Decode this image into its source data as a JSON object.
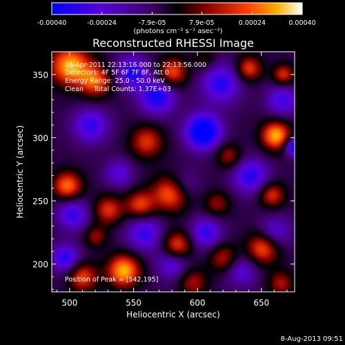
{
  "chart_data": {
    "type": "heatmap",
    "title": "Reconstructed RHESSI Image",
    "xlabel": "Heliocentric X (arcsec)",
    "ylabel": "Heliocentric Y (arcsec)",
    "xlim": [
      486,
      676
    ],
    "ylim": [
      178,
      368
    ],
    "x_ticks": [
      500,
      550,
      600,
      650
    ],
    "y_ticks": [
      200,
      250,
      300,
      350
    ],
    "colorbar": {
      "range": [
        -0.0004,
        0.0004
      ],
      "tick_values": [
        -0.0004,
        -0.00024,
        -7.9e-05,
        7.9e-05,
        0.00024,
        0.0004
      ],
      "tick_labels": [
        "-0.00040",
        "-0.00024",
        "-7.9e-05",
        "7.9e-05",
        "0.00024",
        "0.00040"
      ],
      "units_label": "(photons cm⁻² s⁻¹ asec⁻²)"
    },
    "annotations": {
      "time_range": "16-Apr-2011 22:13:16.000 to 22:13:56.000",
      "detectors": "Detectors: 4F 5F 6F 7F 8F, Att 0",
      "energy_range": "Energy Range: 25.0 - 50.0 keV",
      "method_counts": "Clean     Total Counts: 1.37E+03",
      "peak_position": "Position of Peak = [542,195]"
    },
    "footer_date": "8-Aug-2013 09:51",
    "blobs": [
      {
        "x": 604,
        "y": 305,
        "v": -0.0004,
        "s": 10
      },
      {
        "x": 568,
        "y": 333,
        "v": -0.0003,
        "s": 10
      },
      {
        "x": 548,
        "y": 352,
        "v": -0.00028,
        "s": 9
      },
      {
        "x": 618,
        "y": 343,
        "v": -0.00026,
        "s": 11
      },
      {
        "x": 641,
        "y": 270,
        "v": -0.00026,
        "s": 10
      },
      {
        "x": 516,
        "y": 310,
        "v": -0.00024,
        "s": 10
      },
      {
        "x": 587,
        "y": 262,
        "v": -0.00022,
        "s": 9
      },
      {
        "x": 558,
        "y": 225,
        "v": -0.00024,
        "s": 10
      },
      {
        "x": 606,
        "y": 225,
        "v": -0.00024,
        "s": 9
      },
      {
        "x": 502,
        "y": 240,
        "v": -0.00024,
        "s": 9
      },
      {
        "x": 496,
        "y": 205,
        "v": -0.00026,
        "s": 8
      },
      {
        "x": 666,
        "y": 330,
        "v": -0.00022,
        "s": 9
      },
      {
        "x": 660,
        "y": 225,
        "v": -0.0002,
        "s": 9
      },
      {
        "x": 580,
        "y": 200,
        "v": -0.0002,
        "s": 9
      },
      {
        "x": 538,
        "y": 272,
        "v": -0.00018,
        "s": 8
      },
      {
        "x": 634,
        "y": 195,
        "v": -0.00018,
        "s": 9
      },
      {
        "x": 675,
        "y": 293,
        "v": -0.00034,
        "s": 5
      },
      {
        "x": 500,
        "y": 357,
        "v": 0.0004,
        "s": 11
      },
      {
        "x": 520,
        "y": 345,
        "v": 0.0003,
        "s": 9
      },
      {
        "x": 580,
        "y": 352,
        "v": 0.0003,
        "s": 8
      },
      {
        "x": 560,
        "y": 297,
        "v": 0.00026,
        "s": 9
      },
      {
        "x": 640,
        "y": 355,
        "v": 0.00028,
        "s": 7
      },
      {
        "x": 667,
        "y": 350,
        "v": 0.00026,
        "s": 6
      },
      {
        "x": 661,
        "y": 302,
        "v": 0.0004,
        "s": 8
      },
      {
        "x": 580,
        "y": 257,
        "v": 0.0004,
        "s": 10
      },
      {
        "x": 555,
        "y": 247,
        "v": 0.00028,
        "s": 8
      },
      {
        "x": 498,
        "y": 262,
        "v": 0.00034,
        "s": 8
      },
      {
        "x": 530,
        "y": 243,
        "v": 0.00026,
        "s": 8
      },
      {
        "x": 624,
        "y": 286,
        "v": 0.0002,
        "s": 7
      },
      {
        "x": 658,
        "y": 255,
        "v": 0.00026,
        "s": 7
      },
      {
        "x": 615,
        "y": 248,
        "v": 0.00018,
        "s": 7
      },
      {
        "x": 584,
        "y": 215,
        "v": 0.0003,
        "s": 8
      },
      {
        "x": 651,
        "y": 213,
        "v": 0.00032,
        "s": 9
      },
      {
        "x": 620,
        "y": 205,
        "v": 0.00022,
        "s": 8
      },
      {
        "x": 542,
        "y": 195,
        "v": 0.0004,
        "s": 9
      },
      {
        "x": 510,
        "y": 190,
        "v": 0.00028,
        "s": 8
      },
      {
        "x": 520,
        "y": 222,
        "v": 0.00018,
        "s": 6
      },
      {
        "x": 596,
        "y": 186,
        "v": 0.0002,
        "s": 8
      },
      {
        "x": 665,
        "y": 185,
        "v": 0.0002,
        "s": 7
      },
      {
        "x": 605,
        "y": 362,
        "v": 0.00012,
        "s": 6
      }
    ]
  }
}
